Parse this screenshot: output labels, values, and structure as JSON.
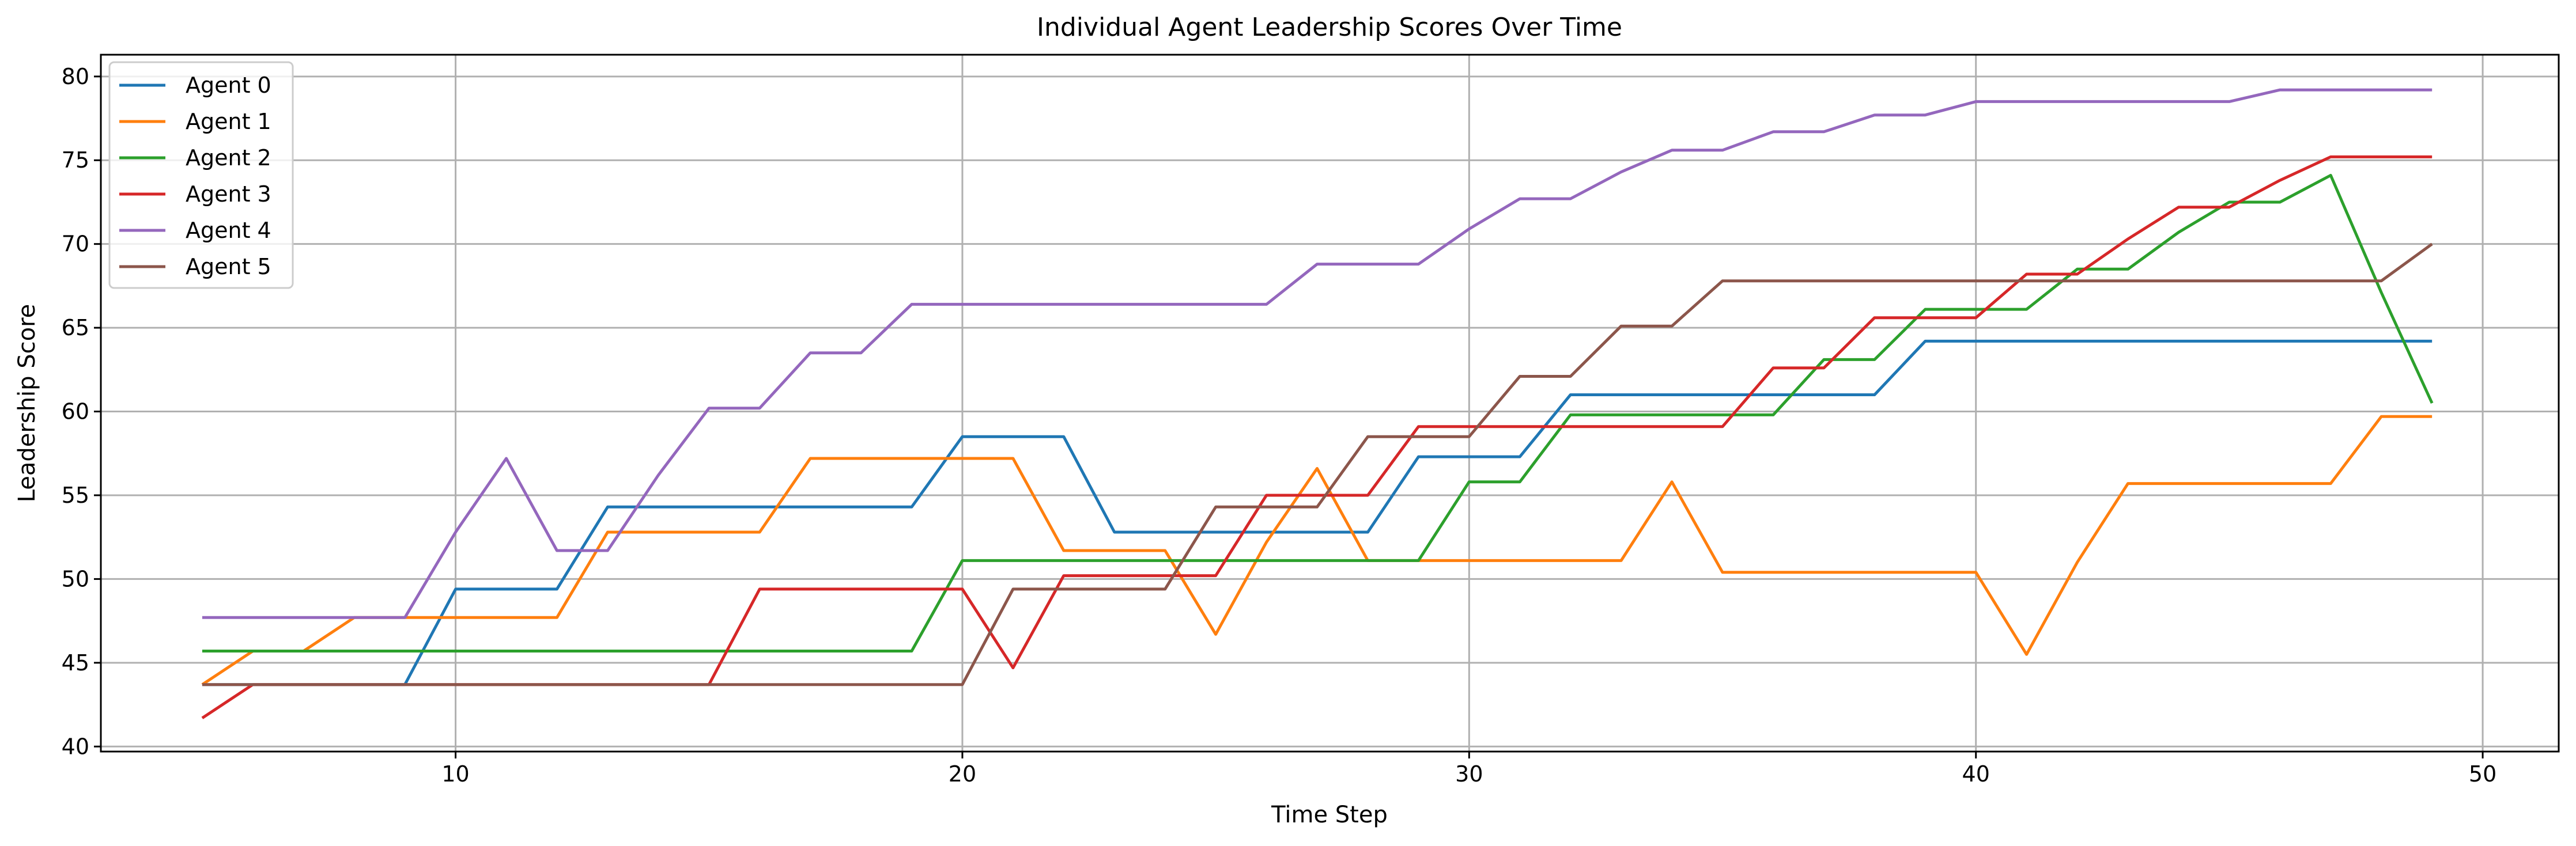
{
  "chart_data": {
    "type": "line",
    "title": "Individual Agent Leadership Scores Over Time",
    "xlabel": "Time Step",
    "ylabel": "Leadership Score",
    "xlim": [
      3,
      51.5
    ],
    "ylim": [
      39.7,
      81.3
    ],
    "xticks": [
      10,
      20,
      30,
      40,
      50
    ],
    "yticks": [
      40,
      45,
      50,
      55,
      60,
      65,
      70,
      75,
      80
    ],
    "grid": true,
    "legend_position": "top-left",
    "x": [
      5,
      6,
      7,
      8,
      9,
      10,
      11,
      12,
      13,
      14,
      15,
      16,
      17,
      18,
      19,
      20,
      21,
      22,
      23,
      24,
      25,
      26,
      27,
      28,
      29,
      30,
      31,
      32,
      33,
      34,
      35,
      36,
      37,
      38,
      39,
      40,
      41,
      42,
      43,
      44,
      45,
      46,
      47,
      48,
      49
    ],
    "series": [
      {
        "name": "Agent 0",
        "color": "#1f77b4",
        "values": [
          43.7,
          43.7,
          43.7,
          43.7,
          43.7,
          49.4,
          49.4,
          49.4,
          54.3,
          54.3,
          54.3,
          54.3,
          54.3,
          54.3,
          54.3,
          58.5,
          58.5,
          58.5,
          52.8,
          52.8,
          52.8,
          52.8,
          52.8,
          52.8,
          57.3,
          57.3,
          57.3,
          61.0,
          61.0,
          61.0,
          61.0,
          61.0,
          61.0,
          61.0,
          64.2,
          64.2,
          64.2,
          64.2,
          64.2,
          64.2,
          64.2,
          64.2,
          64.2,
          64.2,
          64.2
        ]
      },
      {
        "name": "Agent 1",
        "color": "#ff7f0e",
        "values": [
          43.7,
          45.7,
          45.7,
          47.7,
          47.7,
          47.7,
          47.7,
          47.7,
          52.8,
          52.8,
          52.8,
          52.8,
          57.2,
          57.2,
          57.2,
          57.2,
          57.2,
          51.7,
          51.7,
          51.7,
          46.7,
          52.2,
          56.6,
          51.1,
          51.1,
          51.1,
          51.1,
          51.1,
          51.1,
          55.8,
          50.4,
          50.4,
          50.4,
          50.4,
          50.4,
          50.4,
          45.5,
          51.0,
          55.7,
          55.7,
          55.7,
          55.7,
          55.7,
          59.7,
          59.7
        ]
      },
      {
        "name": "Agent 2",
        "color": "#2ca02c",
        "values": [
          45.7,
          45.7,
          45.7,
          45.7,
          45.7,
          45.7,
          45.7,
          45.7,
          45.7,
          45.7,
          45.7,
          45.7,
          45.7,
          45.7,
          45.7,
          51.1,
          51.1,
          51.1,
          51.1,
          51.1,
          51.1,
          51.1,
          51.1,
          51.1,
          51.1,
          55.8,
          55.8,
          59.8,
          59.8,
          59.8,
          59.8,
          59.8,
          63.1,
          63.1,
          66.1,
          66.1,
          66.1,
          68.5,
          68.5,
          70.7,
          72.5,
          72.5,
          74.1,
          67.1,
          60.5
        ]
      },
      {
        "name": "Agent 3",
        "color": "#d62728",
        "values": [
          41.7,
          43.7,
          43.7,
          43.7,
          43.7,
          43.7,
          43.7,
          43.7,
          43.7,
          43.7,
          43.7,
          49.4,
          49.4,
          49.4,
          49.4,
          49.4,
          44.7,
          50.2,
          50.2,
          50.2,
          50.2,
          55.0,
          55.0,
          55.0,
          59.1,
          59.1,
          59.1,
          59.1,
          59.1,
          59.1,
          59.1,
          62.6,
          62.6,
          65.6,
          65.6,
          65.6,
          68.2,
          68.2,
          70.3,
          72.2,
          72.2,
          73.8,
          75.2,
          75.2,
          75.2
        ]
      },
      {
        "name": "Agent 4",
        "color": "#9467bd",
        "values": [
          47.7,
          47.7,
          47.7,
          47.7,
          47.7,
          52.8,
          57.2,
          51.7,
          51.7,
          56.2,
          60.2,
          60.2,
          63.5,
          63.5,
          66.4,
          66.4,
          66.4,
          66.4,
          66.4,
          66.4,
          66.4,
          66.4,
          68.8,
          68.8,
          68.8,
          70.9,
          72.7,
          72.7,
          74.3,
          75.6,
          75.6,
          76.7,
          76.7,
          77.7,
          77.7,
          78.5,
          78.5,
          78.5,
          78.5,
          78.5,
          78.5,
          79.2,
          79.2,
          79.2,
          79.2
        ]
      },
      {
        "name": "Agent 5",
        "color": "#8c564b",
        "values": [
          43.7,
          43.7,
          43.7,
          43.7,
          43.7,
          43.7,
          43.7,
          43.7,
          43.7,
          43.7,
          43.7,
          43.7,
          43.7,
          43.7,
          43.7,
          43.7,
          49.4,
          49.4,
          49.4,
          49.4,
          54.3,
          54.3,
          54.3,
          58.5,
          58.5,
          58.5,
          62.1,
          62.1,
          65.1,
          65.1,
          67.8,
          67.8,
          67.8,
          67.8,
          67.8,
          67.8,
          67.8,
          67.8,
          67.8,
          67.8,
          67.8,
          67.8,
          67.8,
          67.8,
          70.0
        ]
      }
    ]
  }
}
